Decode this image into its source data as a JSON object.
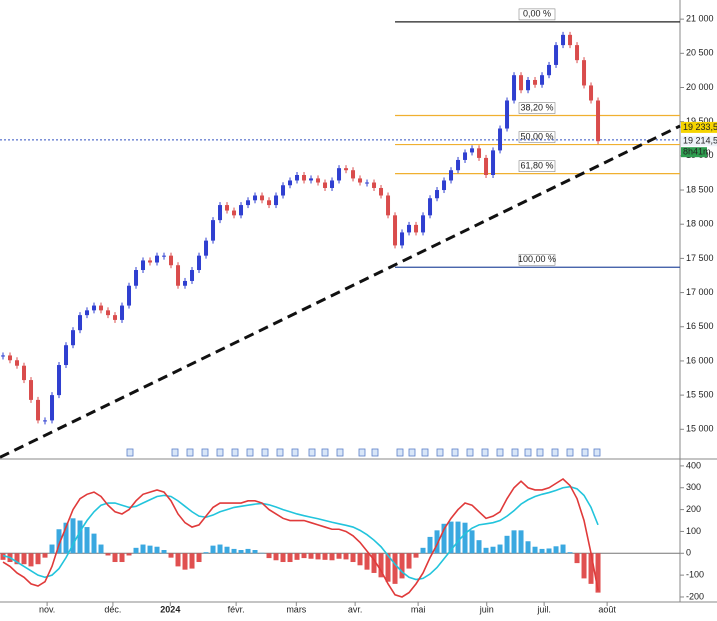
{
  "chart_data": [
    {
      "type": "candlestick",
      "xlim": [
        -0.43,
        96.71
      ],
      "xticks": [
        {
          "value": 6.3,
          "label": "nov."
        },
        {
          "value": 15.7,
          "label": "déc."
        },
        {
          "value": 23.9,
          "label": "2024"
        },
        {
          "value": 33.3,
          "label": "févr."
        },
        {
          "value": 41.9,
          "label": "mars"
        },
        {
          "value": 50.3,
          "label": "avr."
        },
        {
          "value": 59.3,
          "label": "mai"
        },
        {
          "value": 69.1,
          "label": "juin"
        },
        {
          "value": 77.3,
          "label": "juil."
        },
        {
          "value": 86.3,
          "label": "août"
        }
      ],
      "ylim": [
        14580,
        21280
      ],
      "yticks": [
        {
          "value": 15000,
          "label": "15 000"
        },
        {
          "value": 15500,
          "label": "15 500"
        },
        {
          "value": 16000,
          "label": "16 000"
        },
        {
          "value": 16500,
          "label": "16 500"
        },
        {
          "value": 17000,
          "label": "17 000"
        },
        {
          "value": 17500,
          "label": "17 500"
        },
        {
          "value": 18000,
          "label": "18 000"
        },
        {
          "value": 18500,
          "label": "18 500"
        },
        {
          "value": 19000,
          "label": "19 000"
        },
        {
          "value": 19500,
          "label": "19 500"
        },
        {
          "value": 20000,
          "label": "20 000"
        },
        {
          "value": 20500,
          "label": "20 500"
        },
        {
          "value": 21000,
          "label": "21 000"
        }
      ],
      "up_color": "#2f3fd0",
      "down_color": "#d94c4c",
      "values": [
        16080,
        16010,
        15930,
        15720,
        15430,
        15130,
        15130,
        15500,
        15940,
        16230,
        16450,
        16670,
        16740,
        16810,
        16740,
        16670,
        16600,
        16810,
        17100,
        17330,
        17470,
        17440,
        17540,
        17540,
        17400,
        17100,
        17170,
        17330,
        17540,
        17760,
        18060,
        18280,
        18200,
        18130,
        18280,
        18350,
        18420,
        18350,
        18280,
        18420,
        18570,
        18640,
        18720,
        18640,
        18670,
        18610,
        18530,
        18640,
        18820,
        18790,
        18670,
        18610,
        18610,
        18530,
        18420,
        18130,
        17690,
        17880,
        17990,
        17880,
        18130,
        18380,
        18500,
        18640,
        18790,
        18940,
        19050,
        19110,
        18970,
        18720,
        19080,
        19400,
        19810,
        20180,
        19960,
        20110,
        20040,
        20180,
        20330,
        20620,
        20770,
        20620,
        20400,
        20030,
        19810,
        19214.56
      ],
      "fibonacci": {
        "values": [
          20960,
          19590,
          19165,
          18740,
          17370
        ],
        "labels": [
          "0,00 %",
          "38,20 %",
          "50,00 %",
          "61,80 %",
          "100,00 %"
        ],
        "colors": [
          "#222222",
          "#f0b030",
          "#f0b030",
          "#f0b030",
          "#3050a0"
        ]
      },
      "trendline": {
        "x": [
          -0.43,
          96.71
        ],
        "values": [
          14590,
          19437
        ]
      },
      "current_price": {
        "value": 19233.5,
        "label": "19 233,50"
      },
      "last_price": {
        "value": 19214.56,
        "label": "19 214,56"
      },
      "countdown": "8h41m"
    },
    {
      "type": "macd",
      "ylim": [
        -223,
        427
      ],
      "yticks": [
        400,
        300,
        200,
        100,
        0,
        {
          "value": -100,
          "label": "-100"
        },
        {
          "value": -200,
          "label": "-200"
        }
      ],
      "series": [
        {
          "name": "MACD",
          "color": "#e03a3a",
          "values": [
            -40,
            -60,
            -90,
            -110,
            -140,
            -150,
            -130,
            -60,
            40,
            120,
            200,
            250,
            270,
            280,
            260,
            220,
            190,
            180,
            200,
            240,
            270,
            280,
            290,
            280,
            240,
            180,
            140,
            120,
            130,
            170,
            210,
            230,
            230,
            230,
            230,
            240,
            240,
            230,
            200,
            180,
            160,
            150,
            150,
            150,
            140,
            130,
            120,
            110,
            110,
            100,
            80,
            50,
            10,
            -30,
            -80,
            -140,
            -190,
            -200,
            -180,
            -140,
            -90,
            -20,
            40,
            110,
            160,
            200,
            230,
            220,
            190,
            160,
            170,
            190,
            250,
            300,
            330,
            300,
            290,
            290,
            300,
            320,
            340,
            310,
            250,
            150,
            0,
            -170
          ]
        },
        {
          "name": "Signal",
          "color": "#22c4dc",
          "values": [
            -10,
            -20,
            -40,
            -60,
            -80,
            -100,
            -110,
            -100,
            -70,
            -20,
            40,
            100,
            150,
            190,
            220,
            230,
            230,
            220,
            210,
            215,
            230,
            245,
            260,
            265,
            260,
            240,
            215,
            190,
            170,
            165,
            175,
            190,
            200,
            210,
            215,
            220,
            225,
            228,
            222,
            212,
            200,
            190,
            180,
            172,
            165,
            158,
            150,
            142,
            135,
            128,
            120,
            105,
            85,
            60,
            30,
            -10,
            -50,
            -85,
            -110,
            -120,
            -115,
            -95,
            -65,
            -25,
            15,
            55,
            90,
            115,
            130,
            135,
            140,
            150,
            170,
            195,
            225,
            245,
            260,
            270,
            278,
            288,
            300,
            305,
            295,
            265,
            210,
            130
          ]
        }
      ],
      "histogram": {
        "pos_color": "#3aa8e0",
        "neg_color": "#e05050",
        "values": [
          -30,
          -40,
          -50,
          -50,
          -60,
          -50,
          -20,
          40,
          110,
          140,
          160,
          150,
          120,
          90,
          40,
          -10,
          -40,
          -40,
          -10,
          25,
          40,
          35,
          30,
          15,
          -20,
          -60,
          -75,
          -70,
          -40,
          5,
          35,
          40,
          30,
          20,
          15,
          20,
          15,
          2,
          -22,
          -32,
          -40,
          -40,
          -30,
          -22,
          -25,
          -28,
          -30,
          -32,
          -25,
          -28,
          -40,
          -55,
          -75,
          -90,
          -110,
          -130,
          -140,
          -115,
          -70,
          -20,
          25,
          75,
          105,
          135,
          145,
          145,
          140,
          105,
          60,
          25,
          30,
          40,
          80,
          105,
          105,
          55,
          30,
          20,
          22,
          32,
          40,
          5,
          -45,
          -115,
          -140,
          -180
        ]
      }
    }
  ]
}
